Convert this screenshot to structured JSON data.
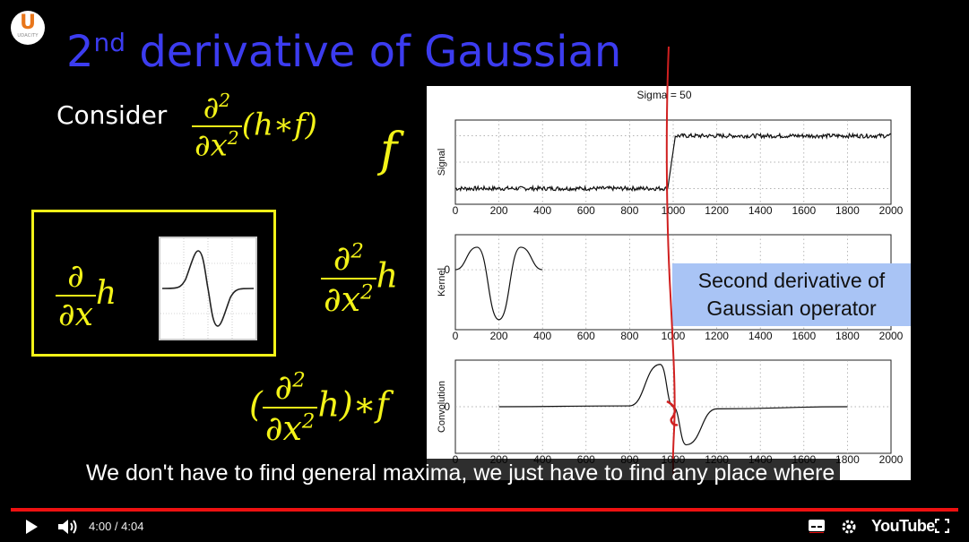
{
  "slide": {
    "logo_letter": "U",
    "logo_text": "UDACITY",
    "title_main": "2",
    "title_sup": "nd",
    "title_rest": " derivative of Gaussian",
    "consider": "Consider",
    "partial": "∂",
    "sq": "2",
    "dx": "∂x",
    "expr1": "(h∗f)",
    "f": "f",
    "h": "h",
    "open_paren": "(",
    "expr3": "h)∗f"
  },
  "figure": {
    "overlay_line1": "Second derivative of",
    "overlay_line2": "Gaussian operator"
  },
  "chart_data": [
    {
      "type": "line",
      "title": "Sigma = 50",
      "ylabel": "Signal",
      "xlim": [
        0,
        2000
      ],
      "xticks": [
        "0",
        "200",
        "400",
        "600",
        "800",
        "1000",
        "1200",
        "1400",
        "1600",
        "1800",
        "2000"
      ],
      "x": [
        0,
        975,
        1010,
        2000
      ],
      "y": [
        0,
        0,
        1,
        1
      ]
    },
    {
      "type": "line",
      "ylabel": "Kernel",
      "yticks": [
        "0"
      ],
      "xlim": [
        0,
        2000
      ],
      "xticks": [
        "0",
        "200",
        "400",
        "600",
        "800",
        "1000",
        "1200",
        "1400",
        "1600",
        "1800",
        "2000"
      ],
      "x": [
        0,
        100,
        200,
        300,
        400
      ],
      "y": [
        0,
        0.45,
        -1.0,
        0.45,
        0
      ]
    },
    {
      "type": "line",
      "ylabel": "Convolution",
      "yticks": [
        "0"
      ],
      "xlim": [
        0,
        2000
      ],
      "xticks": [
        "0",
        "200",
        "400",
        "600",
        "800",
        "1000",
        "1200",
        "1400",
        "1600",
        "1800",
        "2000"
      ],
      "x": [
        200,
        800,
        940,
        1000,
        1060,
        1200,
        1800
      ],
      "y": [
        0,
        0.02,
        1.0,
        0,
        -0.9,
        -0.05,
        0
      ]
    }
  ],
  "caption": "We don't have to find general maxima, we just have to find any place where",
  "player": {
    "time": "4:00 / 4:04",
    "brand": "YouTube",
    "progress_pct": 98,
    "colors": {
      "progress": "#ee1111",
      "title": "#3c3cf0",
      "math": "#f3f318"
    }
  }
}
